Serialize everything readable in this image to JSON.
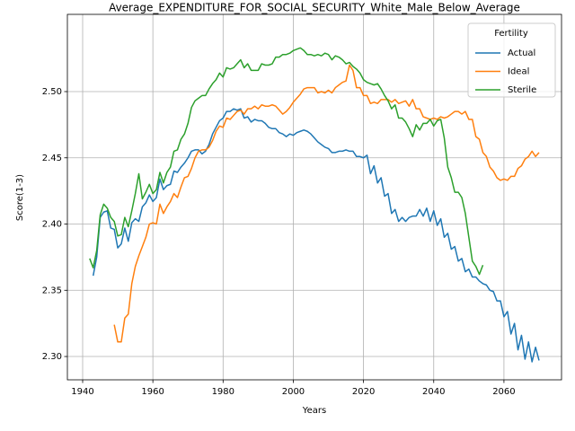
{
  "chart_data": {
    "type": "line",
    "title": "Average_EXPENDITURE_FOR_SOCIAL_SECURITY_White_Male_Below_Average",
    "xlabel": "Years",
    "ylabel": "Score(1-3)",
    "legend_title": "Fertility",
    "legend_loc": "upper right",
    "grid": true,
    "xlim": [
      1935.65,
      2076.4
    ],
    "ylim": [
      2.2824,
      2.5583
    ],
    "xticks": [
      1940,
      1960,
      1980,
      2000,
      2020,
      2040,
      2060
    ],
    "yticks": [
      {
        "value": 2.3,
        "label": "2.30"
      },
      {
        "value": 2.35,
        "label": "2.35"
      },
      {
        "value": 2.4,
        "label": "2.40"
      },
      {
        "value": 2.45,
        "label": "2.45"
      },
      {
        "value": 2.5,
        "label": "2.50"
      }
    ],
    "x": [
      1942,
      1943,
      1944,
      1945,
      1946,
      1947,
      1948,
      1949,
      1950,
      1951,
      1952,
      1953,
      1954,
      1955,
      1956,
      1957,
      1958,
      1959,
      1960,
      1961,
      1962,
      1963,
      1964,
      1965,
      1966,
      1967,
      1968,
      1969,
      1970,
      1971,
      1972,
      1973,
      1974,
      1975,
      1976,
      1977,
      1978,
      1979,
      1980,
      1981,
      1982,
      1983,
      1984,
      1985,
      1986,
      1987,
      1988,
      1989,
      1990,
      1991,
      1992,
      1993,
      1994,
      1995,
      1996,
      1997,
      1998,
      1999,
      2000,
      2001,
      2002,
      2003,
      2004,
      2005,
      2006,
      2007,
      2008,
      2009,
      2010,
      2011,
      2012,
      2013,
      2014,
      2015,
      2016,
      2017,
      2018,
      2019,
      2020,
      2021,
      2022,
      2023,
      2024,
      2025,
      2026,
      2027,
      2028,
      2029,
      2030,
      2031,
      2032,
      2033,
      2034,
      2035,
      2036,
      2037,
      2038,
      2039,
      2040,
      2041,
      2042,
      2043,
      2044,
      2045,
      2046,
      2047,
      2048,
      2049,
      2050,
      2051,
      2052,
      2053,
      2054,
      2055,
      2056,
      2057,
      2058,
      2059,
      2060,
      2061,
      2062,
      2063,
      2064,
      2065,
      2066,
      2067,
      2068,
      2069,
      2070
    ],
    "series": [
      {
        "name": "Actual",
        "color": "#1f77b4",
        "values": [
          null,
          2.361,
          2.375,
          2.405,
          2.409,
          2.41,
          2.397,
          2.396,
          2.382,
          2.385,
          2.397,
          2.387,
          2.401,
          2.404,
          2.402,
          2.413,
          2.416,
          2.422,
          2.417,
          2.42,
          2.434,
          2.426,
          2.429,
          2.43,
          2.44,
          2.439,
          2.443,
          2.446,
          2.45,
          2.455,
          2.456,
          2.456,
          2.453,
          2.455,
          2.46,
          2.468,
          2.473,
          2.478,
          2.48,
          2.485,
          2.485,
          2.487,
          2.486,
          2.487,
          2.48,
          2.481,
          2.477,
          2.479,
          2.478,
          2.478,
          2.476,
          2.473,
          2.472,
          2.472,
          2.469,
          2.468,
          2.466,
          2.468,
          2.467,
          2.469,
          2.47,
          2.471,
          2.47,
          2.468,
          2.465,
          2.462,
          2.46,
          2.458,
          2.457,
          2.454,
          2.454,
          2.455,
          2.455,
          2.456,
          2.455,
          2.455,
          2.451,
          2.451,
          2.45,
          2.452,
          2.438,
          2.444,
          2.431,
          2.435,
          2.421,
          2.423,
          2.408,
          2.411,
          2.402,
          2.405,
          2.402,
          2.405,
          2.406,
          2.406,
          2.411,
          2.406,
          2.412,
          2.402,
          2.41,
          2.399,
          2.404,
          2.39,
          2.393,
          2.381,
          2.383,
          2.372,
          2.374,
          2.364,
          2.366,
          2.36,
          2.36,
          2.357,
          2.355,
          2.354,
          2.35,
          2.349,
          2.342,
          2.342,
          2.33,
          2.334,
          2.317,
          2.325,
          2.305,
          2.316,
          2.298,
          2.311,
          2.296,
          2.307,
          2.297
        ]
      },
      {
        "name": "Ideal",
        "color": "#ff7f0e",
        "values": [
          null,
          null,
          null,
          null,
          null,
          null,
          null,
          2.324,
          2.311,
          2.311,
          2.329,
          2.332,
          2.355,
          2.368,
          2.376,
          2.383,
          2.39,
          2.4,
          2.401,
          2.4,
          2.415,
          2.408,
          2.413,
          2.417,
          2.423,
          2.42,
          2.428,
          2.435,
          2.436,
          2.442,
          2.45,
          2.455,
          2.456,
          2.456,
          2.458,
          2.463,
          2.47,
          2.474,
          2.473,
          2.48,
          2.479,
          2.482,
          2.485,
          2.486,
          2.483,
          2.487,
          2.487,
          2.489,
          2.487,
          2.49,
          2.489,
          2.489,
          2.49,
          2.489,
          2.486,
          2.483,
          2.485,
          2.488,
          2.492,
          2.495,
          2.498,
          2.502,
          2.503,
          2.503,
          2.503,
          2.499,
          2.5,
          2.499,
          2.501,
          2.499,
          2.503,
          2.505,
          2.507,
          2.508,
          2.52,
          2.516,
          2.503,
          2.503,
          2.497,
          2.497,
          2.491,
          2.492,
          2.491,
          2.494,
          2.494,
          2.494,
          2.492,
          2.494,
          2.491,
          2.492,
          2.493,
          2.489,
          2.494,
          2.487,
          2.487,
          2.481,
          2.48,
          2.479,
          2.48,
          2.479,
          2.481,
          2.48,
          2.481,
          2.483,
          2.485,
          2.485,
          2.483,
          2.485,
          2.479,
          2.479,
          2.466,
          2.464,
          2.454,
          2.451,
          2.443,
          2.44,
          2.435,
          2.433,
          2.434,
          2.433,
          2.436,
          2.436,
          2.442,
          2.444,
          2.449,
          2.451,
          2.455,
          2.451,
          2.454
        ]
      },
      {
        "name": "Sterile",
        "color": "#2ca02c",
        "values": [
          2.374,
          2.367,
          2.38,
          2.407,
          2.415,
          2.412,
          2.405,
          2.402,
          2.391,
          2.392,
          2.405,
          2.398,
          2.41,
          2.423,
          2.438,
          2.419,
          2.424,
          2.43,
          2.423,
          2.426,
          2.439,
          2.431,
          2.439,
          2.443,
          2.455,
          2.456,
          2.464,
          2.468,
          2.476,
          2.488,
          2.493,
          2.495,
          2.497,
          2.497,
          2.502,
          2.506,
          2.509,
          2.514,
          2.511,
          2.518,
          2.517,
          2.518,
          2.521,
          2.524,
          2.518,
          2.521,
          2.516,
          2.516,
          2.516,
          2.521,
          2.52,
          2.52,
          2.521,
          2.526,
          2.526,
          2.528,
          2.528,
          2.529,
          2.531,
          2.532,
          2.533,
          2.531,
          2.528,
          2.528,
          2.527,
          2.528,
          2.527,
          2.529,
          2.528,
          2.524,
          2.527,
          2.526,
          2.524,
          2.521,
          2.522,
          2.519,
          2.517,
          2.514,
          2.509,
          2.507,
          2.506,
          2.505,
          2.506,
          2.502,
          2.497,
          2.493,
          2.487,
          2.49,
          2.48,
          2.48,
          2.477,
          2.472,
          2.466,
          2.475,
          2.471,
          2.476,
          2.476,
          2.479,
          2.474,
          2.478,
          2.479,
          2.465,
          2.443,
          2.435,
          2.424,
          2.424,
          2.42,
          2.408,
          2.39,
          2.372,
          2.368,
          2.362,
          2.369,
          null,
          null,
          null,
          null,
          null,
          null,
          null,
          null,
          null,
          null,
          null,
          null,
          null,
          null,
          null,
          null
        ]
      }
    ]
  }
}
